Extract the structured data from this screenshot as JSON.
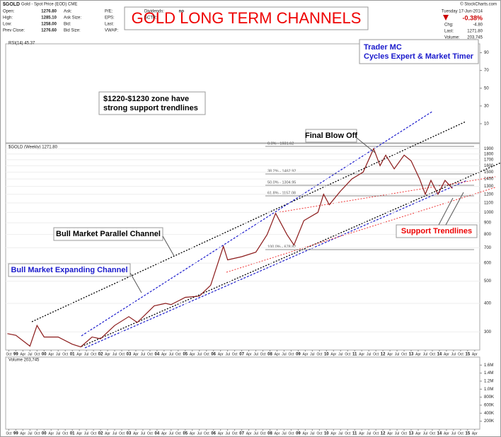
{
  "header": {
    "symbol": "$GOLD",
    "description": "Gold - Spot Price (EOD) CME",
    "credit": "© StockCharts.com",
    "quote": [
      [
        {
          "label": "Open:",
          "value": "1276.80"
        },
        {
          "label": "High:",
          "value": "1285.10"
        },
        {
          "label": "Low:",
          "value": "1258.00"
        },
        {
          "label": "Prev Close:",
          "value": "1276.60"
        }
      ],
      [
        {
          "label": "Ask:",
          "value": ""
        },
        {
          "label": "Ask Size:",
          "value": ""
        },
        {
          "label": "Bid:",
          "value": ""
        },
        {
          "label": "Bid Size:",
          "value": ""
        }
      ],
      [
        {
          "label": "P/E:",
          "value": ""
        },
        {
          "label": "EPS:",
          "value": ""
        },
        {
          "label": "Last:",
          "value": ""
        },
        {
          "label": "VWAP:",
          "value": ""
        }
      ],
      [
        {
          "label": "Dividends:",
          "value": "no"
        },
        {
          "label": "SCTR:",
          "value": ""
        }
      ]
    ],
    "date": "Tuesday 17-Jun-2014",
    "change_pct": "-0.38%",
    "right": [
      {
        "label": "Chg:",
        "value": "-4.80"
      },
      {
        "label": "Last:",
        "value": "1271.80"
      },
      {
        "label": "Volume:",
        "value": "203,745"
      }
    ]
  },
  "annotations": {
    "title": "GOLD LONG TERM CHANNELS",
    "author": [
      "Trader MC",
      "Cycles Expert & Market Timer"
    ],
    "zone": [
      "$1220-$1230 zone have",
      "strong support trendlines"
    ],
    "blowoff": "Final Blow Off",
    "parallel": "Bull Market Parallel Channel",
    "expanding": "Bull Market Expanding Channel",
    "support": "Support Trendlines",
    "fib": [
      "0.0% - 1931.62",
      "38.2% - 1462.92",
      "50.0% - 1304.95",
      "61.8% - 1157.08",
      "100.0% - 678.82"
    ]
  },
  "rsi": {
    "label": "RSI(14) 45.37",
    "ylim": [
      0,
      100
    ],
    "yticks": [
      10,
      30,
      50,
      70,
      90
    ]
  },
  "volume": {
    "label": "Volume 203,745",
    "ylim": [
      0,
      1800000
    ],
    "yticks": [
      {
        "value": 200000,
        "label": "200K"
      },
      {
        "value": 400000,
        "label": "400K"
      },
      {
        "value": 600000,
        "label": "600K"
      },
      {
        "value": 800000,
        "label": "800K"
      },
      {
        "value": 1000000,
        "label": "1.0M"
      },
      {
        "value": 1200000,
        "label": "1.2M"
      },
      {
        "value": 1400000,
        "label": "1.4M"
      },
      {
        "value": 1600000,
        "label": "1.6M"
      }
    ]
  },
  "chart_data": {
    "type": "line",
    "label": "$GOLD (Weekly) 1271.80",
    "color": "#8b1a1a",
    "log": true,
    "x": [
      1998.7,
      1999.0,
      1999.5,
      1999.75,
      2000.0,
      2000.5,
      2001.0,
      2001.3,
      2001.7,
      2002.0,
      2002.5,
      2003.0,
      2003.3,
      2003.9,
      2004.3,
      2004.5,
      2005.0,
      2005.5,
      2005.9,
      2006.35,
      2006.5,
      2007.0,
      2007.5,
      2007.9,
      2008.2,
      2008.6,
      2008.85,
      2009.2,
      2009.7,
      2009.9,
      2010.1,
      2010.5,
      2010.9,
      2011.3,
      2011.67,
      2011.9,
      2012.1,
      2012.4,
      2012.75,
      2013.0,
      2013.3,
      2013.5,
      2013.7,
      2013.95,
      2014.2,
      2014.46
    ],
    "values": [
      295,
      290,
      260,
      320,
      285,
      285,
      265,
      258,
      285,
      280,
      320,
      350,
      330,
      390,
      400,
      395,
      425,
      430,
      480,
      710,
      620,
      640,
      670,
      800,
      990,
      800,
      720,
      920,
      1000,
      1200,
      1080,
      1240,
      1400,
      1500,
      1900,
      1600,
      1780,
      1550,
      1780,
      1680,
      1400,
      1200,
      1380,
      1200,
      1380,
      1272
    ],
    "xlim": [
      1998.64,
      2015.43
    ],
    "xticks": [
      {
        "value": 1998.75,
        "label": "Oct"
      },
      {
        "value": 1999,
        "label": "99"
      },
      {
        "value": 1999.25,
        "label": "Apr"
      },
      {
        "value": 1999.5,
        "label": "Jul"
      },
      {
        "value": 1999.75,
        "label": "Oct"
      },
      {
        "value": 2000,
        "label": "00"
      },
      {
        "value": 2000.25,
        "label": "Apr"
      },
      {
        "value": 2000.5,
        "label": "Jul"
      },
      {
        "value": 2000.75,
        "label": "Oct"
      },
      {
        "value": 2001,
        "label": "01"
      },
      {
        "value": 2001.25,
        "label": "Apr"
      },
      {
        "value": 2001.5,
        "label": "Jul"
      },
      {
        "value": 2001.75,
        "label": "Oct"
      },
      {
        "value": 2002,
        "label": "02"
      },
      {
        "value": 2002.25,
        "label": "Apr"
      },
      {
        "value": 2002.5,
        "label": "Jul"
      },
      {
        "value": 2002.75,
        "label": "Oct"
      },
      {
        "value": 2003,
        "label": "03"
      },
      {
        "value": 2003.25,
        "label": "Apr"
      },
      {
        "value": 2003.5,
        "label": "Jul"
      },
      {
        "value": 2003.75,
        "label": "Oct"
      },
      {
        "value": 2004,
        "label": "04"
      },
      {
        "value": 2004.25,
        "label": "Apr"
      },
      {
        "value": 2004.5,
        "label": "Jul"
      },
      {
        "value": 2004.75,
        "label": "Oct"
      },
      {
        "value": 2005,
        "label": "05"
      },
      {
        "value": 2005.25,
        "label": "Apr"
      },
      {
        "value": 2005.5,
        "label": "Jul"
      },
      {
        "value": 2005.75,
        "label": "Oct"
      },
      {
        "value": 2006,
        "label": "06"
      },
      {
        "value": 2006.25,
        "label": "Apr"
      },
      {
        "value": 2006.5,
        "label": "Jul"
      },
      {
        "value": 2006.75,
        "label": "Oct"
      },
      {
        "value": 2007,
        "label": "07"
      },
      {
        "value": 2007.25,
        "label": "Apr"
      },
      {
        "value": 2007.5,
        "label": "Jul"
      },
      {
        "value": 2007.75,
        "label": "Oct"
      },
      {
        "value": 2008,
        "label": "08"
      },
      {
        "value": 2008.25,
        "label": "Apr"
      },
      {
        "value": 2008.5,
        "label": "Jul"
      },
      {
        "value": 2008.75,
        "label": "Oct"
      },
      {
        "value": 2009,
        "label": "09"
      },
      {
        "value": 2009.25,
        "label": "Apr"
      },
      {
        "value": 2009.5,
        "label": "Jul"
      },
      {
        "value": 2009.75,
        "label": "Oct"
      },
      {
        "value": 2010,
        "label": "10"
      },
      {
        "value": 2010.25,
        "label": "Apr"
      },
      {
        "value": 2010.5,
        "label": "Jul"
      },
      {
        "value": 2010.75,
        "label": "Oct"
      },
      {
        "value": 2011,
        "label": "11"
      },
      {
        "value": 2011.25,
        "label": "Apr"
      },
      {
        "value": 2011.5,
        "label": "Jul"
      },
      {
        "value": 2011.75,
        "label": "Oct"
      },
      {
        "value": 2012,
        "label": "12"
      },
      {
        "value": 2012.25,
        "label": "Apr"
      },
      {
        "value": 2012.5,
        "label": "Jul"
      },
      {
        "value": 2012.75,
        "label": "Oct"
      },
      {
        "value": 2013,
        "label": "13"
      },
      {
        "value": 2013.25,
        "label": "Apr"
      },
      {
        "value": 2013.5,
        "label": "Jul"
      },
      {
        "value": 2013.75,
        "label": "Oct"
      },
      {
        "value": 2014,
        "label": "14"
      },
      {
        "value": 2014.25,
        "label": "Apr"
      },
      {
        "value": 2014.5,
        "label": "Jul"
      },
      {
        "value": 2014.75,
        "label": "Oct"
      },
      {
        "value": 2015,
        "label": "15"
      },
      {
        "value": 2015.25,
        "label": "Apr"
      }
    ],
    "ylim": [
      250,
      2000
    ],
    "yticks": [
      300,
      400,
      500,
      600,
      700,
      800,
      900,
      1000,
      1100,
      1200,
      1300,
      1400,
      1500,
      1600,
      1700,
      1800,
      1900
    ]
  }
}
